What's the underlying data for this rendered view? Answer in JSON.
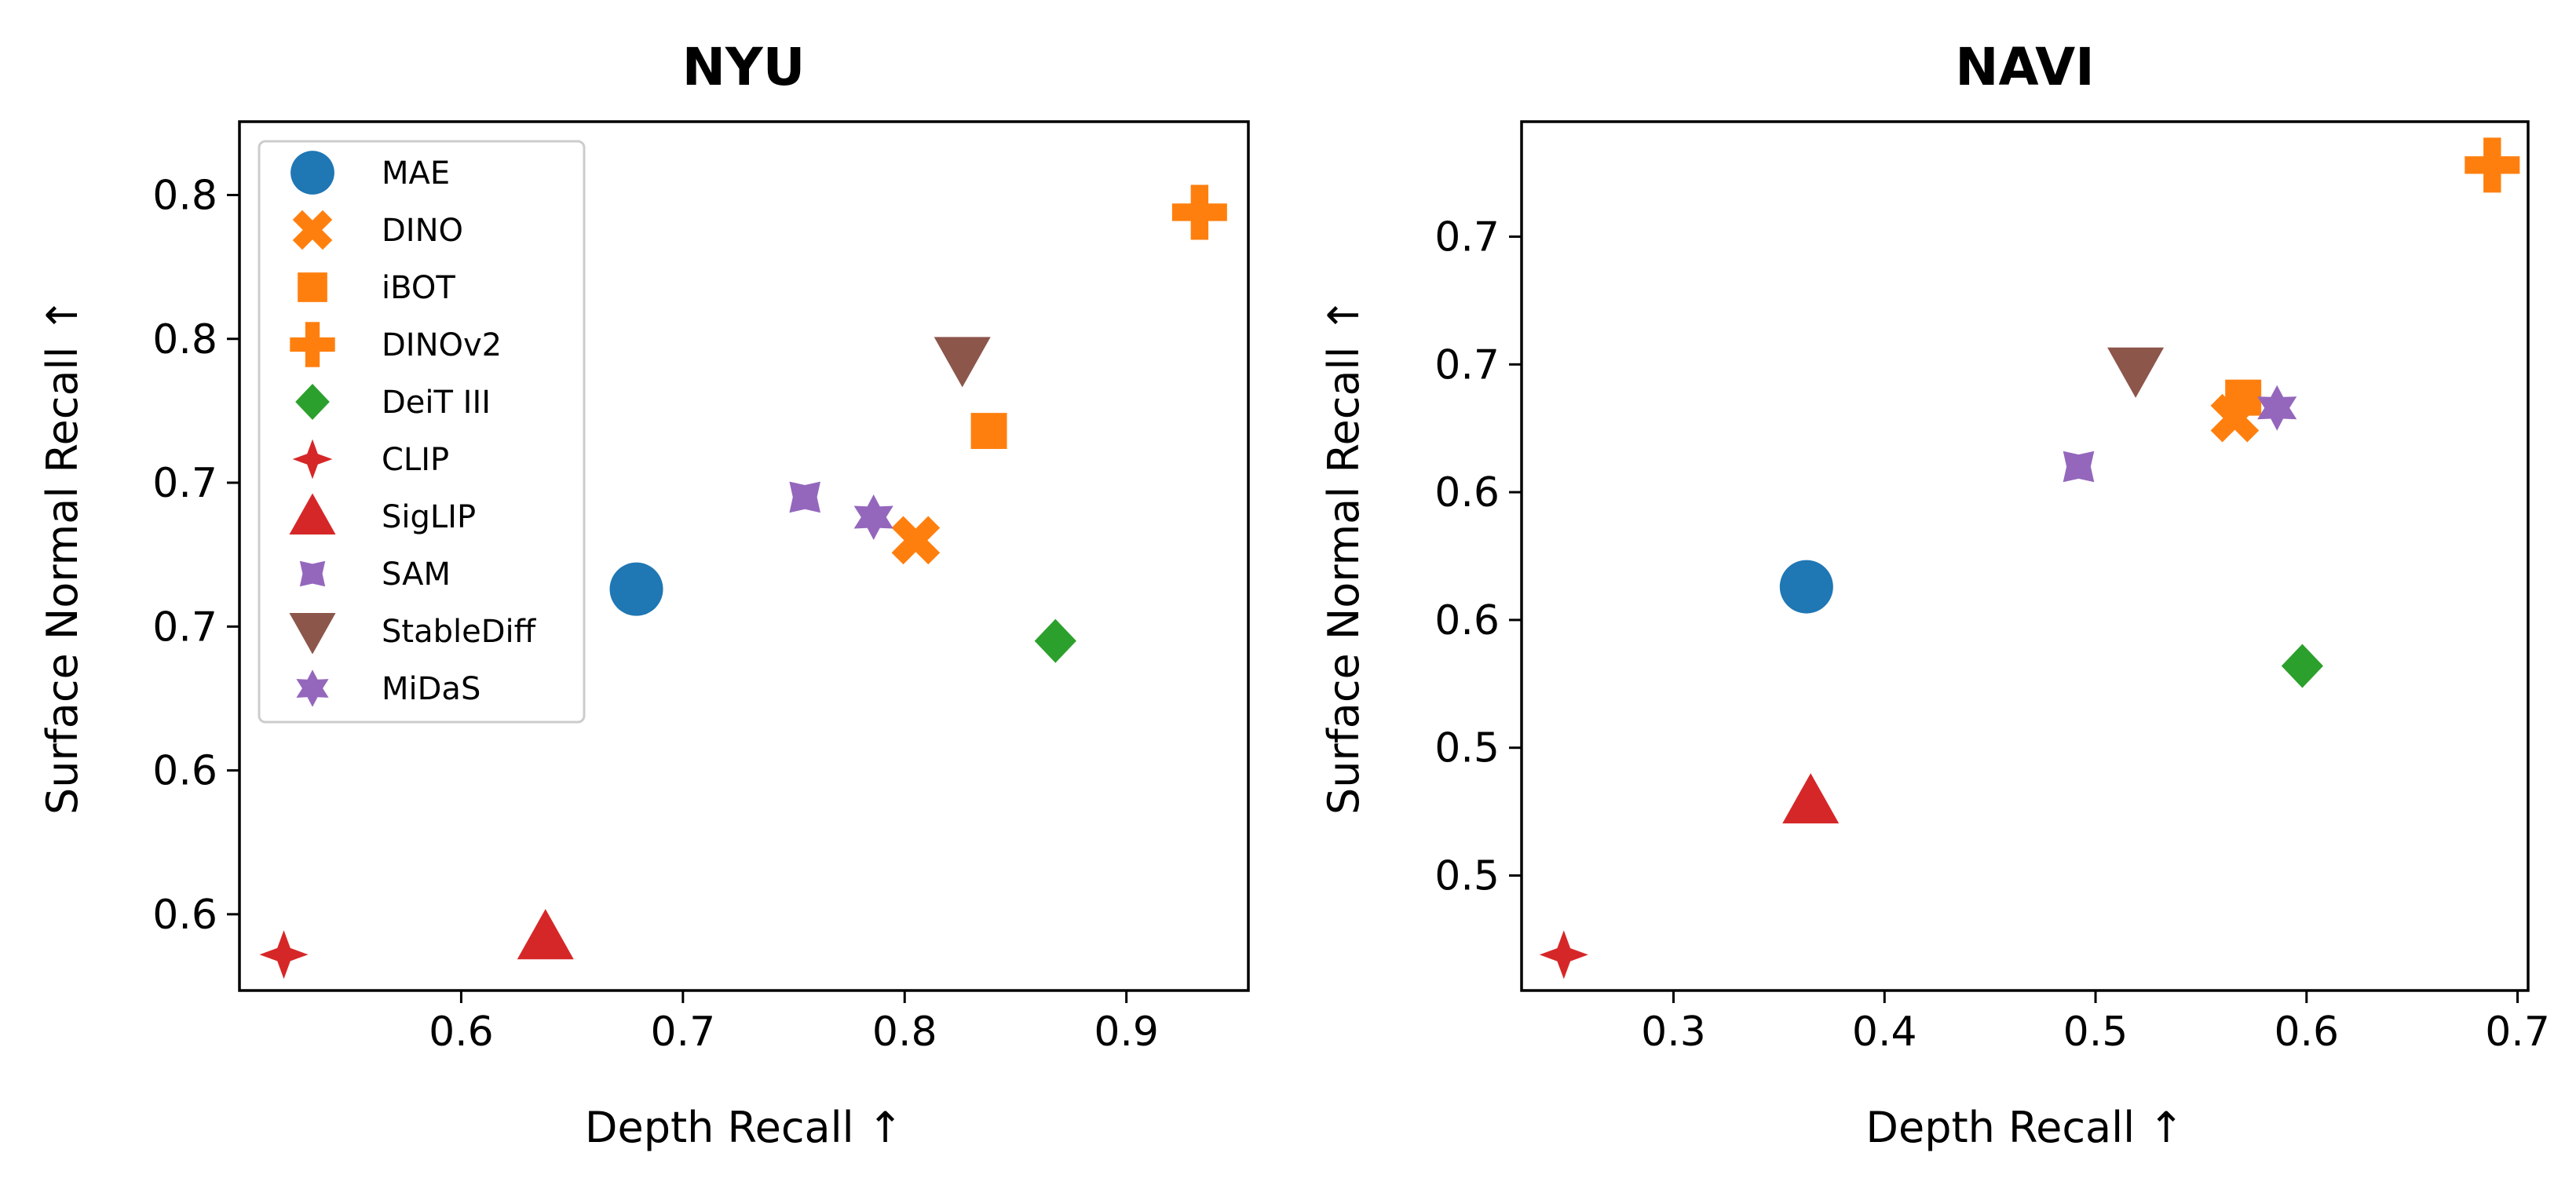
{
  "colors": {
    "blue": "#1f77b4",
    "orange": "#ff7f0e",
    "green": "#2ca02c",
    "red": "#d62728",
    "purple": "#9467bd",
    "brown": "#8c564b"
  },
  "legend": [
    {
      "label": "MAE",
      "marker": "circle",
      "color": "blue"
    },
    {
      "label": "DINO",
      "marker": "x-filled",
      "color": "orange"
    },
    {
      "label": "iBOT",
      "marker": "square",
      "color": "orange"
    },
    {
      "label": "DINOv2",
      "marker": "plus-filled",
      "color": "orange"
    },
    {
      "label": "DeiT III",
      "marker": "diamond",
      "color": "green"
    },
    {
      "label": "CLIP",
      "marker": "star4",
      "color": "red"
    },
    {
      "label": "SigLIP",
      "marker": "triangle-up",
      "color": "red"
    },
    {
      "label": "SAM",
      "marker": "star4-wide",
      "color": "purple"
    },
    {
      "label": "StableDiff",
      "marker": "triangle-down",
      "color": "brown"
    },
    {
      "label": "MiDaS",
      "marker": "star6",
      "color": "purple"
    }
  ],
  "chart_data": [
    {
      "type": "scatter",
      "title": "NYU",
      "xlabel": "Depth Recall ↑",
      "ylabel": "Surface Normal Recall ↑",
      "xlim": [
        0.5,
        0.955
      ],
      "ylim": [
        0.5485,
        0.8505
      ],
      "x_ticks": [
        0.6,
        0.7,
        0.8,
        0.9
      ],
      "x_tick_labels": [
        "0.6",
        "0.7",
        "0.8",
        "0.9"
      ],
      "y_ticks": [
        0.575,
        0.625,
        0.675,
        0.725,
        0.775,
        0.825
      ],
      "y_tick_labels": [
        "0.6",
        "0.6",
        "0.7",
        "0.7",
        "0.8",
        "0.8"
      ],
      "legend_position": "upper-left",
      "points": [
        {
          "model": "MAE",
          "x": 0.679,
          "y": 0.688
        },
        {
          "model": "DINO",
          "x": 0.805,
          "y": 0.705
        },
        {
          "model": "iBOT",
          "x": 0.838,
          "y": 0.743
        },
        {
          "model": "DINOv2",
          "x": 0.933,
          "y": 0.819
        },
        {
          "model": "DeiT III",
          "x": 0.868,
          "y": 0.67
        },
        {
          "model": "CLIP",
          "x": 0.52,
          "y": 0.561
        },
        {
          "model": "SigLIP",
          "x": 0.638,
          "y": 0.567
        },
        {
          "model": "SAM",
          "x": 0.755,
          "y": 0.72
        },
        {
          "model": "StableDiff",
          "x": 0.826,
          "y": 0.768
        },
        {
          "model": "MiDaS",
          "x": 0.786,
          "y": 0.713
        }
      ]
    },
    {
      "type": "scatter",
      "title": "NAVI",
      "xlabel": "Depth Recall ↑",
      "ylabel": "Surface Normal Recall ↑",
      "xlim": [
        0.228,
        0.705
      ],
      "ylim": [
        0.43,
        0.77
      ],
      "x_ticks": [
        0.3,
        0.4,
        0.5,
        0.6,
        0.7
      ],
      "x_tick_labels": [
        "0.3",
        "0.4",
        "0.5",
        "0.6",
        "0.7"
      ],
      "y_ticks": [
        0.475,
        0.525,
        0.575,
        0.625,
        0.675,
        0.725
      ],
      "y_tick_labels": [
        "0.5",
        "0.5",
        "0.6",
        "0.6",
        "0.7",
        "0.7"
      ],
      "legend_position": "none",
      "points": [
        {
          "model": "MAE",
          "x": 0.363,
          "y": 0.588
        },
        {
          "model": "DINO",
          "x": 0.566,
          "y": 0.654
        },
        {
          "model": "iBOT",
          "x": 0.57,
          "y": 0.662
        },
        {
          "model": "DINOv2",
          "x": 0.688,
          "y": 0.753
        },
        {
          "model": "DeiT III",
          "x": 0.598,
          "y": 0.557
        },
        {
          "model": "CLIP",
          "x": 0.248,
          "y": 0.444
        },
        {
          "model": "SigLIP",
          "x": 0.365,
          "y": 0.504
        },
        {
          "model": "SAM",
          "x": 0.492,
          "y": 0.635
        },
        {
          "model": "StableDiff",
          "x": 0.519,
          "y": 0.673
        },
        {
          "model": "MiDaS",
          "x": 0.586,
          "y": 0.658
        }
      ]
    }
  ]
}
